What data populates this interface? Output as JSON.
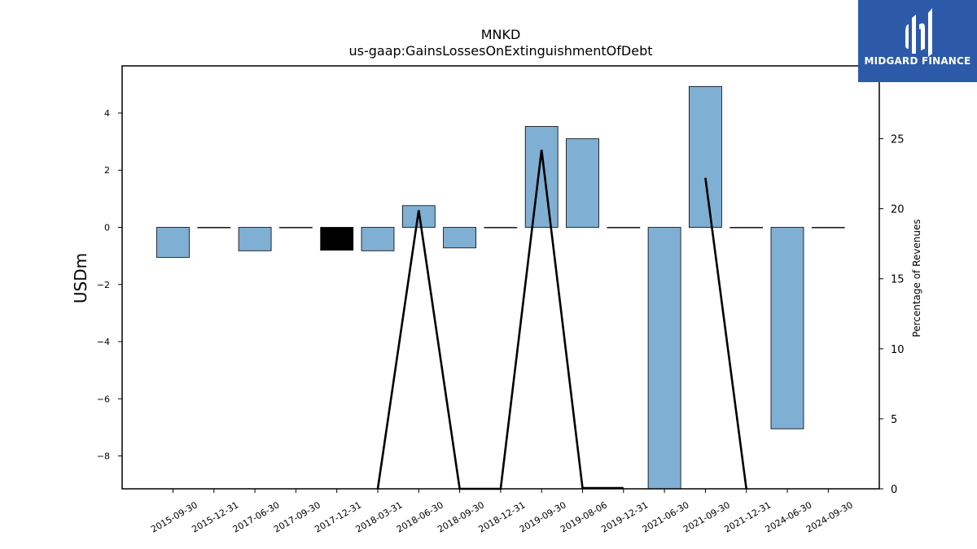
{
  "logo": {
    "text": "MIDGARD FINANCE"
  },
  "colors": {
    "bar": "#7fafd3",
    "bar_highlight": "#000000",
    "line": "#000000",
    "logo_bg": "#2d5aa8"
  },
  "chart_data": {
    "type": "bar",
    "title": "MNKD",
    "subtitle": "us-gaap:GainsLossesOnExtinguishmentOfDebt",
    "ylabel": "USDm",
    "y2label": "Percentage of Revenues",
    "ylim": [
      -9.15,
      5.65
    ],
    "y2lim": [
      0,
      30.2
    ],
    "yticks": [
      -8,
      -6,
      -4,
      -2,
      0,
      2,
      4
    ],
    "y2ticks": [
      0,
      5,
      10,
      15,
      20,
      25
    ],
    "categories": [
      "2015-09-30",
      "2015-12-31",
      "2017-06-30",
      "2017-09-30",
      "2017-12-31",
      "2018-03-31",
      "2018-06-30",
      "2018-09-30",
      "2018-12-31",
      "2019-09-30",
      "2019-08-06",
      "2019-12-31",
      "2021-06-30",
      "2021-09-30",
      "2021-12-31",
      "2024-06-30",
      "2024-09-30"
    ],
    "series": [
      {
        "values": [
          -1.05,
          0,
          -0.82,
          0,
          -0.8,
          -0.82,
          0.76,
          -0.72,
          0,
          3.53,
          3.1,
          0,
          -9.15,
          4.93,
          0,
          -7.05,
          0
        ],
        "highlight_index": 4
      },
      {
        "axis": "right",
        "type": "line",
        "values": [
          0.05,
          null,
          null,
          null,
          null,
          0,
          19.9,
          0,
          0,
          24.2,
          0.05,
          0.05,
          null,
          22.2,
          0,
          null,
          null
        ]
      }
    ],
    "grid": false
  }
}
